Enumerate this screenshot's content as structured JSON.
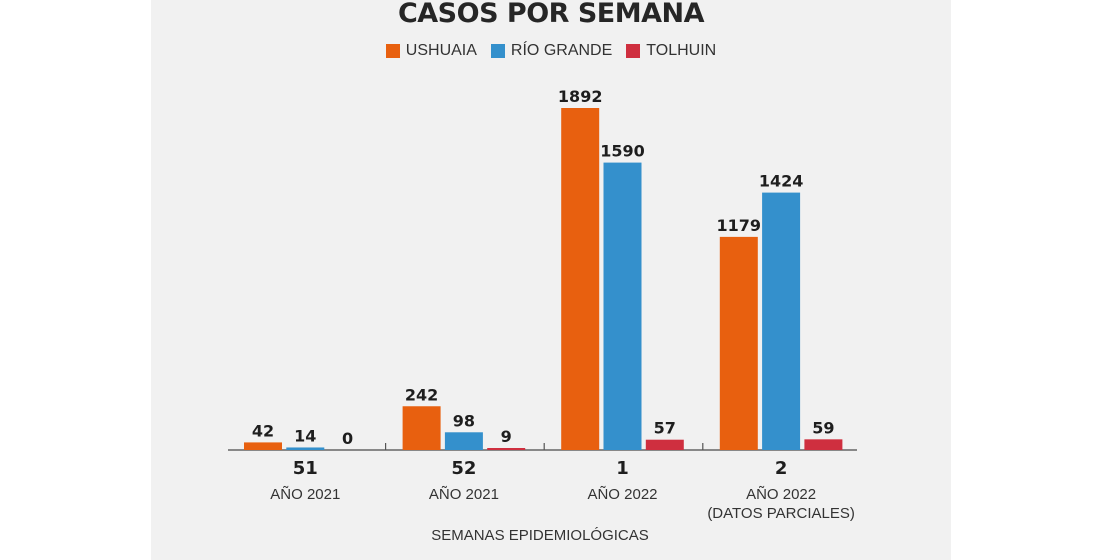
{
  "chart_data": {
    "type": "bar",
    "title": "CASOS POR SEMANA",
    "xlabel": "SEMANAS EPIDEMIOLÓGICAS",
    "ylabel": "",
    "ylim": [
      0,
      1892
    ],
    "grid": false,
    "legend_position": "top-center",
    "categories": [
      {
        "week": "51",
        "year": "AÑO 2021",
        "note": ""
      },
      {
        "week": "52",
        "year": "AÑO 2021",
        "note": ""
      },
      {
        "week": "1",
        "year": "AÑO 2022",
        "note": ""
      },
      {
        "week": "2",
        "year": "AÑO 2022",
        "note": "(DATOS PARCIALES)"
      }
    ],
    "series": [
      {
        "name": "USHUAIA",
        "color": "#e8600f",
        "values": [
          42,
          242,
          1892,
          1179
        ]
      },
      {
        "name": "RÍO GRANDE",
        "color": "#3490cc",
        "values": [
          14,
          98,
          1590,
          1424
        ]
      },
      {
        "name": "TOLHUIN",
        "color": "#cf2f3f",
        "values": [
          0,
          9,
          57,
          59
        ]
      }
    ]
  }
}
